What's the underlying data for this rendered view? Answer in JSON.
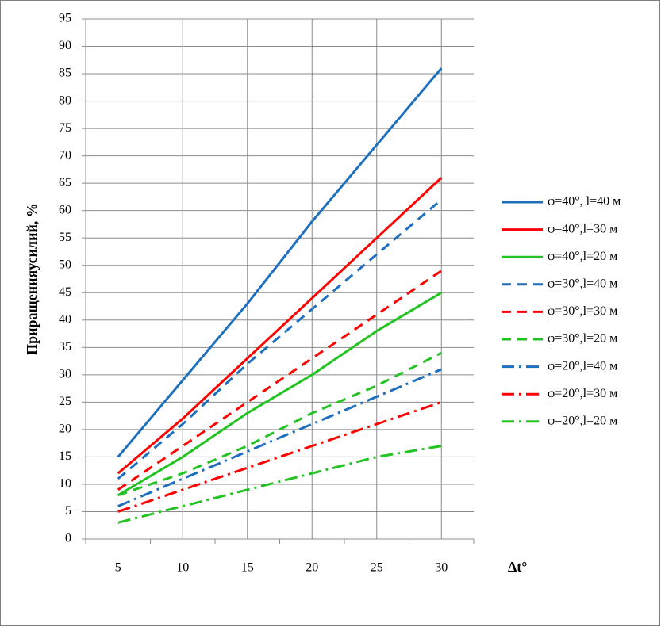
{
  "chart_data": {
    "type": "line",
    "y_label": "Приращенияусилий, %",
    "x_label": "Δt°",
    "categories": [
      "5",
      "10",
      "15",
      "20",
      "25",
      "30"
    ],
    "ylim": [
      0,
      95
    ],
    "yticks": [
      0,
      5,
      10,
      15,
      20,
      25,
      30,
      35,
      40,
      45,
      50,
      55,
      60,
      65,
      70,
      75,
      80,
      85,
      90,
      95
    ],
    "grid": true,
    "legend": "right",
    "series": [
      {
        "name": "φ=40°, l=40 м",
        "color": "#1f6fbf",
        "dash": "solid",
        "values": [
          15,
          29,
          43,
          58,
          72,
          86
        ]
      },
      {
        "name": "φ=40°,l=30 м",
        "color": "#ff0000",
        "dash": "solid",
        "values": [
          12,
          22,
          33,
          44,
          55,
          66
        ]
      },
      {
        "name": "φ=40°,l=20 м",
        "color": "#22c322",
        "dash": "solid",
        "values": [
          8,
          15,
          23,
          30,
          38,
          45
        ]
      },
      {
        "name": "φ=30°,l=40 м",
        "color": "#1f6fbf",
        "dash": "dash",
        "values": [
          11,
          21,
          32,
          42,
          52,
          62
        ]
      },
      {
        "name": "φ=30°,l=30 м",
        "color": "#ff0000",
        "dash": "dash",
        "values": [
          9,
          17,
          25,
          33,
          41,
          49
        ]
      },
      {
        "name": "φ=30°,l=20 м",
        "color": "#22c322",
        "dash": "dash",
        "values": [
          8,
          12,
          17,
          23,
          28,
          34
        ]
      },
      {
        "name": "φ=20°,l=40 м",
        "color": "#1f6fbf",
        "dash": "dashdot",
        "values": [
          6,
          11,
          16,
          21,
          26,
          31
        ]
      },
      {
        "name": "φ=20°,l=30 м",
        "color": "#ff0000",
        "dash": "dashdot",
        "values": [
          5,
          9,
          13,
          17,
          21,
          25
        ]
      },
      {
        "name": "φ=20°,l=20 м",
        "color": "#22c322",
        "dash": "dashdot",
        "values": [
          3,
          6,
          9,
          12,
          15,
          17
        ]
      }
    ]
  }
}
